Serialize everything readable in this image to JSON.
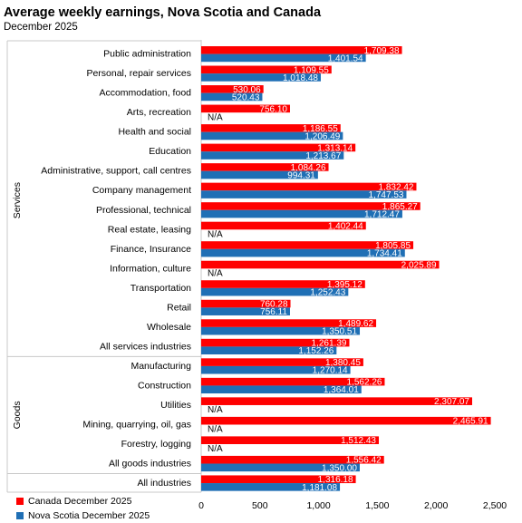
{
  "chart_data": {
    "type": "bar",
    "orientation": "horizontal",
    "title": "Average weekly earnings, Nova Scotia and Canada",
    "subtitle": "December  2025",
    "xlim": [
      0,
      2500
    ],
    "x_ticks": [
      0,
      500,
      1000,
      1500,
      2000,
      2500
    ],
    "x_tick_labels": [
      "0",
      "500",
      "1,000",
      "1,500",
      "2,000",
      "2,500"
    ],
    "grid": false,
    "legend_position": "bottom-left",
    "groups": [
      {
        "label": "Services",
        "first_index": 0,
        "last_index": 15
      },
      {
        "label": "Goods",
        "first_index": 16,
        "last_index": 21
      }
    ],
    "categories": [
      "Public administration",
      "Personal, repair services",
      "Accommodation, food",
      "Arts, recreation",
      "Health and social",
      "Education",
      "Administrative, support, call centres",
      "Company management",
      "Professional, technical",
      "Real estate, leasing",
      "Finance, Insurance",
      "Information, culture",
      "Transportation",
      "Retail",
      "Wholesale",
      "All services industries",
      "Manufacturing",
      "Construction",
      "Utilities",
      "Mining, quarrying, oil, gas",
      "Forestry, logging",
      "All goods industries",
      "All industries"
    ],
    "series": [
      {
        "name": "Canada December 2025",
        "color": "#ff0000",
        "values": [
          1709.38,
          1109.55,
          530.06,
          756.1,
          1186.55,
          1313.14,
          1084.26,
          1832.42,
          1865.27,
          1402.44,
          1805.85,
          2025.89,
          1395.12,
          760.28,
          1489.62,
          1261.39,
          1380.45,
          1562.26,
          2307.07,
          2465.91,
          1512.43,
          1556.42,
          1316.18
        ],
        "labels": [
          "1,709.38",
          "1,109.55",
          "530.06",
          "756.10",
          "1,186.55",
          "1,313.14",
          "1,084.26",
          "1,832.42",
          "1,865.27",
          "1,402.44",
          "1,805.85",
          "2,025.89",
          "1,395.12",
          "760.28",
          "1,489.62",
          "1,261.39",
          "1,380.45",
          "1,562.26",
          "2,307.07",
          "2,465.91",
          "1,512.43",
          "1,556.42",
          "1,316.18"
        ]
      },
      {
        "name": "Nova Scotia December 2025",
        "color": "#1f6fb5",
        "values": [
          1401.54,
          1018.48,
          520.43,
          null,
          1206.49,
          1213.67,
          994.31,
          1747.53,
          1712.47,
          null,
          1734.41,
          null,
          1252.43,
          756.11,
          1350.51,
          1152.26,
          1270.14,
          1364.01,
          null,
          null,
          null,
          1350.0,
          1181.08
        ],
        "labels": [
          "1,401.54",
          "1,018.48",
          "520.43",
          "N/A",
          "1,206.49",
          "1,213.67",
          "994.31",
          "1,747.53",
          "1,712.47",
          "N/A",
          "1,734.41",
          "N/A",
          "1,252.43",
          "756.11",
          "1,350.51",
          "1,152.26",
          "1,270.14",
          "1,364.01",
          "N/A",
          "N/A",
          "N/A",
          "1,350.00",
          "1,181.08"
        ]
      }
    ]
  }
}
